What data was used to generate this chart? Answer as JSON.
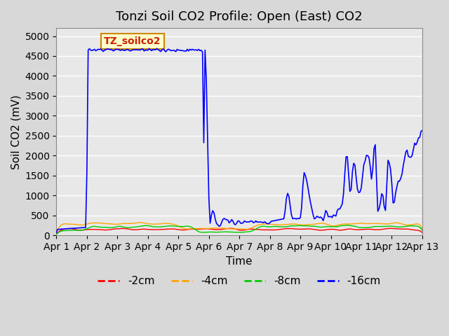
{
  "title": "Tonzi Soil CO2 Profile: Open (East) CO2",
  "ylabel": "Soil CO2 (mV)",
  "xlabel": "Time",
  "watermark": "TZ_soilco2",
  "ylim": [
    0,
    5200
  ],
  "yticks": [
    0,
    500,
    1000,
    1500,
    2000,
    2500,
    3000,
    3500,
    4000,
    4500,
    5000
  ],
  "xtick_labels": [
    "Apr 1",
    "Apr 2",
    "Apr 3",
    "Apr 4",
    "Apr 5",
    "Apr 6",
    "Apr 7",
    "Apr 8",
    "Apr 9",
    "Apr 10",
    "Apr 11",
    "Apr 12",
    "Apr 13"
  ],
  "legend_labels": [
    "-2cm",
    "-4cm",
    "-8cm",
    "-16cm"
  ],
  "legend_colors": [
    "#ff0000",
    "#ffa500",
    "#00cc00",
    "#0000ff"
  ],
  "bg_color": "#e8e8e8",
  "plot_bg_color": "#e8e8e8",
  "grid_color": "#ffffff",
  "title_fontsize": 13,
  "axis_fontsize": 11,
  "tick_fontsize": 10,
  "legend_fontsize": 11
}
